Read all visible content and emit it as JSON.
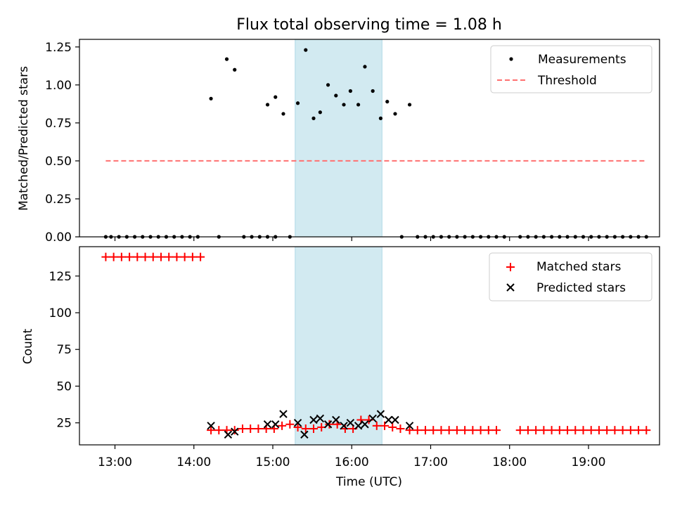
{
  "chart_data": {
    "title": "Flux total observing time = 1.08 h",
    "type": "scatter",
    "x_unit": "time (UTC)",
    "xlabel": "Time (UTC)",
    "xlim": [
      "12:33",
      "19:54"
    ],
    "x_tick_labels": [
      "13:00",
      "14:00",
      "15:00",
      "16:00",
      "17:00",
      "18:00",
      "19:00"
    ],
    "highlight_span": {
      "start": "15:17",
      "end": "16:23",
      "color": "#add8e6"
    },
    "panels": [
      {
        "id": "ratio",
        "ylabel": "Matched/Predicted stars",
        "ylim": [
          0,
          1.3
        ],
        "y_ticks": [
          "0.00",
          "0.25",
          "0.50",
          "0.75",
          "1.00",
          "1.25"
        ],
        "legend_position": "top-right",
        "series": [
          {
            "name": "Measurements",
            "type": "scatter",
            "marker": "dot",
            "color": "#000000",
            "points": [
              [
                "12:53",
                0
              ],
              [
                "12:57",
                0
              ],
              [
                "13:03",
                0
              ],
              [
                "13:09",
                0
              ],
              [
                "13:15",
                0
              ],
              [
                "13:21",
                0
              ],
              [
                "13:27",
                0
              ],
              [
                "13:33",
                0
              ],
              [
                "13:39",
                0
              ],
              [
                "13:45",
                0
              ],
              [
                "13:51",
                0
              ],
              [
                "13:57",
                0
              ],
              [
                "14:03",
                0
              ],
              [
                "14:13",
                0.91
              ],
              [
                "14:19",
                0
              ],
              [
                "14:25",
                1.17
              ],
              [
                "14:31",
                1.1
              ],
              [
                "14:38",
                0
              ],
              [
                "14:44",
                0
              ],
              [
                "14:50",
                0
              ],
              [
                "14:56",
                0
              ],
              [
                "15:02",
                0
              ],
              [
                "14:56",
                0.87
              ],
              [
                "15:02",
                0.92
              ],
              [
                "15:08",
                0.81
              ],
              [
                "15:13",
                0
              ],
              [
                "15:19",
                0.88
              ],
              [
                "15:25",
                1.23
              ],
              [
                "15:31",
                0.78
              ],
              [
                "15:36",
                0.82
              ],
              [
                "15:42",
                1.0
              ],
              [
                "15:48",
                0.93
              ],
              [
                "15:54",
                0.87
              ],
              [
                "15:59",
                0.96
              ],
              [
                "16:05",
                0.87
              ],
              [
                "16:10",
                1.12
              ],
              [
                "16:16",
                0.96
              ],
              [
                "16:22",
                0.78
              ],
              [
                "16:27",
                0.89
              ],
              [
                "16:33",
                0.81
              ],
              [
                "16:38",
                0
              ],
              [
                "16:44",
                0.87
              ],
              [
                "16:50",
                0
              ],
              [
                "16:56",
                0
              ],
              [
                "17:02",
                0
              ],
              [
                "17:08",
                0
              ],
              [
                "17:14",
                0
              ],
              [
                "17:20",
                0
              ],
              [
                "17:26",
                0
              ],
              [
                "17:32",
                0
              ],
              [
                "17:38",
                0
              ],
              [
                "17:44",
                0
              ],
              [
                "17:50",
                0
              ],
              [
                "17:56",
                0
              ],
              [
                "18:08",
                0
              ],
              [
                "18:14",
                0
              ],
              [
                "18:20",
                0
              ],
              [
                "18:26",
                0
              ],
              [
                "18:32",
                0
              ],
              [
                "18:38",
                0
              ],
              [
                "18:44",
                0
              ],
              [
                "18:50",
                0
              ],
              [
                "18:56",
                0
              ],
              [
                "19:02",
                0
              ],
              [
                "19:08",
                0
              ],
              [
                "19:14",
                0
              ],
              [
                "19:20",
                0
              ],
              [
                "19:26",
                0
              ],
              [
                "19:32",
                0
              ],
              [
                "19:38",
                0
              ],
              [
                "19:44",
                0
              ]
            ]
          },
          {
            "name": "Threshold",
            "type": "line",
            "style": "dashed",
            "color": "#ff7070",
            "points": [
              [
                "12:53",
                0.5
              ],
              [
                "19:44",
                0.5
              ]
            ]
          }
        ]
      },
      {
        "id": "counts",
        "ylabel": "Count",
        "ylim": [
          10,
          145
        ],
        "y_ticks": [
          "25",
          "50",
          "75",
          "100",
          "125"
        ],
        "legend_position": "top-right",
        "series": [
          {
            "name": "Matched stars",
            "type": "scatter",
            "marker": "plus",
            "color": "#ff0000",
            "points": [
              [
                "12:53",
                138
              ],
              [
                "12:59",
                138
              ],
              [
                "13:05",
                138
              ],
              [
                "13:11",
                138
              ],
              [
                "13:17",
                138
              ],
              [
                "13:23",
                138
              ],
              [
                "13:29",
                138
              ],
              [
                "13:35",
                138
              ],
              [
                "13:41",
                138
              ],
              [
                "13:47",
                138
              ],
              [
                "13:53",
                138
              ],
              [
                "13:59",
                138
              ],
              [
                "14:05",
                138
              ],
              [
                "14:13",
                20
              ],
              [
                "14:19",
                20
              ],
              [
                "14:25",
                20
              ],
              [
                "14:31",
                20
              ],
              [
                "14:37",
                21
              ],
              [
                "14:43",
                21
              ],
              [
                "14:49",
                21
              ],
              [
                "14:55",
                21
              ],
              [
                "15:01",
                21
              ],
              [
                "15:07",
                23
              ],
              [
                "15:13",
                24
              ],
              [
                "15:19",
                22
              ],
              [
                "15:25",
                21
              ],
              [
                "15:31",
                21
              ],
              [
                "15:37",
                22
              ],
              [
                "15:43",
                24
              ],
              [
                "15:49",
                24
              ],
              [
                "15:55",
                21
              ],
              [
                "16:01",
                21
              ],
              [
                "16:07",
                27
              ],
              [
                "16:13",
                27
              ],
              [
                "16:19",
                23
              ],
              [
                "16:25",
                23
              ],
              [
                "16:31",
                22
              ],
              [
                "16:37",
                21
              ],
              [
                "16:44",
                20
              ],
              [
                "16:50",
                20
              ],
              [
                "16:56",
                20
              ],
              [
                "17:02",
                20
              ],
              [
                "17:08",
                20
              ],
              [
                "17:14",
                20
              ],
              [
                "17:20",
                20
              ],
              [
                "17:26",
                20
              ],
              [
                "17:32",
                20
              ],
              [
                "17:38",
                20
              ],
              [
                "17:44",
                20
              ],
              [
                "17:50",
                20
              ],
              [
                "18:08",
                20
              ],
              [
                "18:14",
                20
              ],
              [
                "18:20",
                20
              ],
              [
                "18:26",
                20
              ],
              [
                "18:32",
                20
              ],
              [
                "18:38",
                20
              ],
              [
                "18:44",
                20
              ],
              [
                "18:50",
                20
              ],
              [
                "18:56",
                20
              ],
              [
                "19:02",
                20
              ],
              [
                "19:08",
                20
              ],
              [
                "19:14",
                20
              ],
              [
                "19:20",
                20
              ],
              [
                "19:26",
                20
              ],
              [
                "19:32",
                20
              ],
              [
                "19:38",
                20
              ],
              [
                "19:44",
                20
              ]
            ]
          },
          {
            "name": "Predicted stars",
            "type": "scatter",
            "marker": "x",
            "color": "#000000",
            "points": [
              [
                "14:13",
                23
              ],
              [
                "14:26",
                17
              ],
              [
                "14:31",
                19
              ],
              [
                "14:56",
                24
              ],
              [
                "15:02",
                24
              ],
              [
                "15:08",
                31
              ],
              [
                "15:19",
                25
              ],
              [
                "15:24",
                17
              ],
              [
                "15:31",
                27
              ],
              [
                "15:36",
                28
              ],
              [
                "15:42",
                24
              ],
              [
                "15:48",
                27
              ],
              [
                "15:54",
                23
              ],
              [
                "15:59",
                25
              ],
              [
                "16:05",
                23
              ],
              [
                "16:10",
                24
              ],
              [
                "16:16",
                28
              ],
              [
                "16:22",
                31
              ],
              [
                "16:28",
                27
              ],
              [
                "16:33",
                27
              ],
              [
                "16:44",
                23
              ]
            ]
          }
        ]
      }
    ]
  }
}
